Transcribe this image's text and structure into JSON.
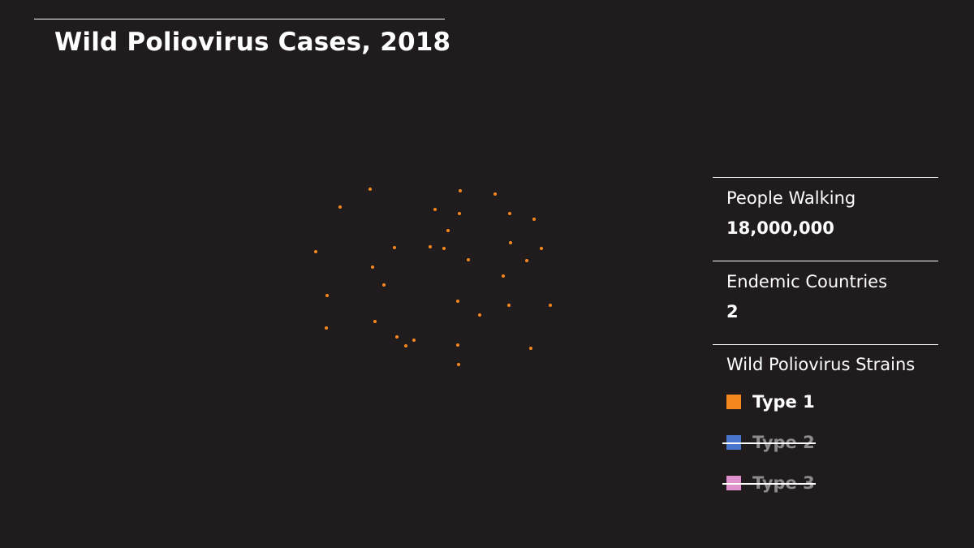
{
  "title": "Wild Poliovirus Cases, 2018",
  "stats": [
    {
      "label": "People Walking",
      "value": "18,000,000"
    },
    {
      "label": "Endemic Countries",
      "value": "2"
    }
  ],
  "legend": {
    "heading": "Wild Poliovirus Strains",
    "items": [
      {
        "label": "Type 1",
        "color": "#f5871f",
        "active": true
      },
      {
        "label": "Type 2",
        "color": "#4f7fe0",
        "active": false
      },
      {
        "label": "Type 3",
        "color": "#f49ee0",
        "active": false
      }
    ]
  },
  "chart_data": {
    "type": "scatter",
    "title": "Wild Poliovirus Cases, 2018",
    "series": [
      {
        "name": "Type 1",
        "color": "#f5871f"
      }
    ],
    "case_count": 33
  }
}
